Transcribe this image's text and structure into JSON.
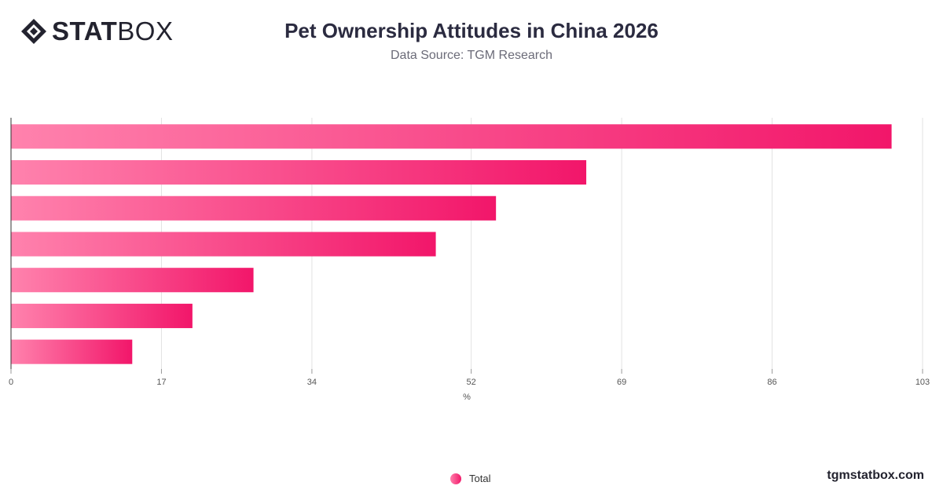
{
  "brand": {
    "logo_strong": "STAT",
    "logo_light": "BOX",
    "site": "tgmstatbox.com"
  },
  "header": {
    "title": "Pet Ownership Attitudes in China 2026",
    "subtitle": "Data Source: TGM Research"
  },
  "legend": {
    "label": "Total"
  },
  "colors": {
    "bar_start": "#ff82ad",
    "bar_end": "#f2166a",
    "grid": "#e2e2e2",
    "axis": "#333333"
  },
  "chart_data": {
    "type": "bar",
    "orientation": "horizontal",
    "title": "Pet Ownership Attitudes in China 2026",
    "subtitle": "Data Source: TGM Research",
    "xlabel": "%",
    "xlim": [
      0,
      103
    ],
    "xticks": [
      0,
      17,
      34,
      52,
      69,
      86,
      103
    ],
    "grid": true,
    "legend_position": "bottom",
    "series": [
      {
        "name": "Total",
        "values": [
          99.5,
          65,
          54.8,
          48,
          27.4,
          20.5,
          13.7
        ]
      }
    ]
  }
}
